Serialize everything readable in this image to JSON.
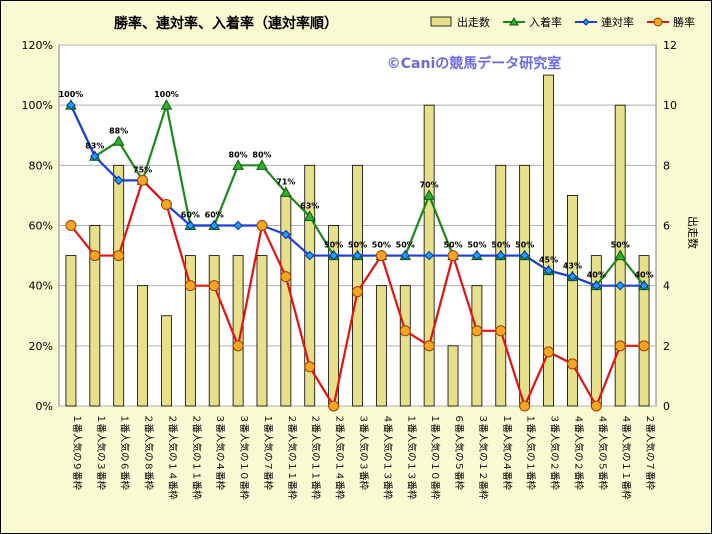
{
  "chart_data": {
    "type": "bar+line",
    "title": "勝率、連対率、入着率（連対率順）",
    "watermark": "©Caniの競馬データ研究室",
    "y_left": {
      "ticks": [
        "0%",
        "20%",
        "40%",
        "60%",
        "80%",
        "100%",
        "120%"
      ],
      "range": [
        0,
        120
      ]
    },
    "y_right": {
      "label": "出走数",
      "ticks": [
        "0",
        "2",
        "4",
        "6",
        "8",
        "10",
        "12"
      ],
      "range": [
        0,
        12
      ]
    },
    "grid": true,
    "legend_position": "top-right",
    "categories": [
      "１番人気の９番枠",
      "１番人気の３番枠",
      "１番人気の６番枠",
      "２番人気の８番枠",
      "２番人気の１４番枠",
      "２番人気の１１番枠",
      "３番人気の４番枠",
      "３番人気の１０番枠",
      "１番人気の７番枠",
      "２番人気の１１番枠",
      "２番人気の１１番枠",
      "２番人気の１４番枠",
      "３番人気の３番枠",
      "４番人気の１３番枠",
      "１番人気の１３番枠",
      "１番人気の１０番枠",
      "６番人気の５番枠",
      "３番人気の１２番枠",
      "１番人気の４番枠",
      "１番人気の１番枠",
      "３番人気の２番枠",
      "４番人気の２番枠",
      "４番人気の５番枠",
      "４番人気の１１番枠",
      "２番人気の７番枠"
    ],
    "series": [
      {
        "name": "出走数",
        "type": "bar",
        "axis": "right",
        "color": "#e6e08a",
        "values": [
          5,
          6,
          8,
          4,
          3,
          5,
          5,
          5,
          5,
          7,
          8,
          6,
          8,
          4,
          4,
          10,
          2,
          4,
          8,
          8,
          11,
          7,
          5,
          10,
          5
        ]
      },
      {
        "name": "入着率",
        "type": "line",
        "axis": "left",
        "color": "#1a8a1a",
        "marker": "triangle",
        "values": [
          100,
          83,
          88,
          75,
          100,
          60,
          60,
          80,
          80,
          71,
          63,
          50,
          50,
          50,
          50,
          70,
          50,
          50,
          50,
          50,
          45,
          43,
          40,
          50,
          40
        ]
      },
      {
        "name": "連対率",
        "type": "line",
        "axis": "left",
        "color": "#1f3fdc",
        "marker": "diamond",
        "values": [
          100,
          83,
          75,
          75,
          67,
          60,
          60,
          60,
          60,
          57,
          50,
          50,
          50,
          50,
          50,
          50,
          50,
          50,
          50,
          50,
          45,
          43,
          40,
          40,
          40
        ]
      },
      {
        "name": "勝率",
        "type": "line",
        "axis": "left",
        "color": "#e81010",
        "marker": "circle",
        "values": [
          60,
          50,
          50,
          75,
          67,
          40,
          40,
          20,
          60,
          43,
          13,
          0,
          38,
          50,
          25,
          20,
          50,
          25,
          25,
          0,
          18,
          14,
          0,
          20,
          20
        ]
      }
    ],
    "data_labels": [
      "100%",
      "83%",
      "88%",
      "75%",
      "100%",
      "60%",
      "60%",
      "80%",
      "80%",
      "71%",
      "63%",
      "50%",
      "50%",
      "50%",
      "50%",
      "70%",
      "50%",
      "50%",
      "50%",
      "50%",
      "45%",
      "43%",
      "40%",
      "50%",
      "40%"
    ]
  }
}
